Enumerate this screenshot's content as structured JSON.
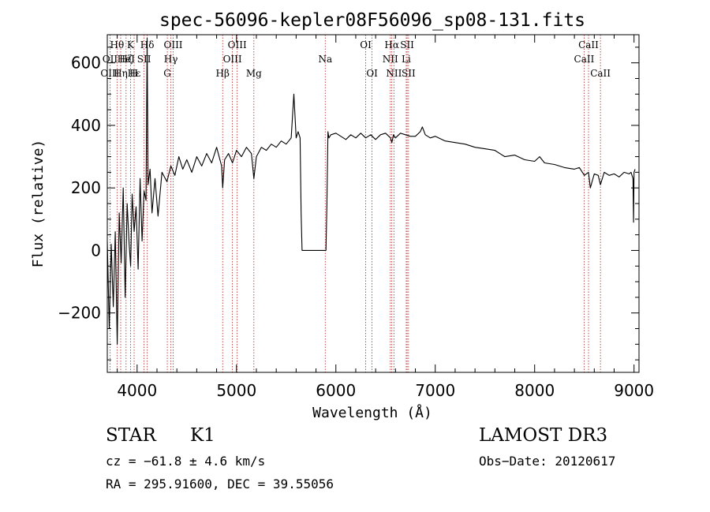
{
  "chart_data": {
    "type": "line",
    "title": "spec-56096-kepler08F56096_sp08-131.fits",
    "xlabel": "Wavelength (Å)",
    "ylabel": "Flux (relative)",
    "xlim": [
      3700,
      9050
    ],
    "ylim": [
      -390,
      690
    ],
    "xticks": [
      4000,
      5000,
      6000,
      7000,
      8000,
      9000
    ],
    "yticks": [
      -200,
      0,
      200,
      400,
      600
    ],
    "xtick_labels": [
      "4000",
      "5000",
      "6000",
      "7000",
      "8000",
      "9000"
    ],
    "ytick_labels": [
      "−200",
      "0",
      "200",
      "400",
      "600"
    ],
    "series": [
      {
        "name": "flux",
        "x": [
          3700,
          3720,
          3740,
          3760,
          3780,
          3800,
          3820,
          3840,
          3860,
          3880,
          3900,
          3920,
          3935,
          3950,
          3970,
          3990,
          4010,
          4030,
          4050,
          4070,
          4090,
          4101,
          4110,
          4130,
          4150,
          4180,
          4210,
          4250,
          4300,
          4340,
          4380,
          4420,
          4460,
          4500,
          4550,
          4600,
          4650,
          4700,
          4750,
          4800,
          4850,
          4861,
          4880,
          4920,
          4960,
          5000,
          5050,
          5100,
          5150,
          5175,
          5200,
          5250,
          5300,
          5350,
          5400,
          5450,
          5500,
          5550,
          5577,
          5600,
          5620,
          5640,
          5650,
          5660,
          5680,
          5800,
          5900,
          5910,
          5920,
          5930,
          5950,
          6000,
          6050,
          6100,
          6150,
          6200,
          6250,
          6300,
          6350,
          6400,
          6450,
          6500,
          6550,
          6563,
          6580,
          6600,
          6650,
          6700,
          6750,
          6800,
          6850,
          6870,
          6900,
          6950,
          7000,
          7100,
          7200,
          7300,
          7400,
          7500,
          7600,
          7700,
          7800,
          7900,
          8000,
          8050,
          8100,
          8200,
          8300,
          8400,
          8450,
          8500,
          8542,
          8560,
          8600,
          8640,
          8662,
          8700,
          8750,
          8800,
          8850,
          8900,
          8950,
          8970,
          8990,
          8995,
          9000,
          9010
        ],
        "y": [
          30,
          -250,
          20,
          -180,
          60,
          -300,
          120,
          -40,
          200,
          -150,
          150,
          20,
          -50,
          180,
          60,
          140,
          -60,
          230,
          30,
          190,
          160,
          680,
          210,
          260,
          120,
          230,
          110,
          250,
          220,
          270,
          240,
          300,
          260,
          290,
          250,
          300,
          270,
          310,
          280,
          330,
          270,
          200,
          290,
          310,
          280,
          320,
          300,
          330,
          310,
          230,
          300,
          330,
          320,
          340,
          330,
          350,
          340,
          360,
          500,
          360,
          380,
          360,
          120,
          0,
          0,
          0,
          0,
          150,
          380,
          360,
          370,
          375,
          365,
          355,
          370,
          360,
          375,
          360,
          370,
          355,
          370,
          375,
          360,
          345,
          370,
          360,
          375,
          370,
          365,
          365,
          380,
          395,
          370,
          360,
          365,
          350,
          345,
          340,
          330,
          325,
          320,
          300,
          305,
          290,
          285,
          300,
          280,
          275,
          265,
          260,
          265,
          240,
          250,
          200,
          245,
          240,
          210,
          250,
          240,
          245,
          235,
          250,
          245,
          250,
          230,
          90,
          250,
          260
        ]
      }
    ],
    "lines": [
      {
        "name": "Hθ",
        "wl": 3798,
        "row": 0
      },
      {
        "name": "OII",
        "wl": 3727,
        "row": 1
      },
      {
        "name": "OIII",
        "wl": 3727,
        "row": 2
      },
      {
        "name": "K",
        "wl": 3934,
        "row": 0
      },
      {
        "name": "Hζ",
        "wl": 3889,
        "row": 1
      },
      {
        "name": "Hε",
        "wl": 3970,
        "row": 2
      },
      {
        "name": "Hδ",
        "wl": 4102,
        "row": 0
      },
      {
        "name": "HeI",
        "wl": 3889,
        "row": 1
      },
      {
        "name": "Hη",
        "wl": 3835,
        "row": 2
      },
      {
        "name": "SII",
        "wl": 4070,
        "row": 1
      },
      {
        "name": "H",
        "wl": 3968,
        "row": 2
      },
      {
        "name": "OIII",
        "wl": 4363,
        "row": 0
      },
      {
        "name": "Hγ",
        "wl": 4340,
        "row": 1
      },
      {
        "name": "G",
        "wl": 4304,
        "row": 2
      },
      {
        "name": "Hβ",
        "wl": 4861,
        "row": 2
      },
      {
        "name": "OIII",
        "wl": 5007,
        "row": 0
      },
      {
        "name": "OIII",
        "wl": 4959,
        "row": 1
      },
      {
        "name": "Mg",
        "wl": 5175,
        "row": 2
      },
      {
        "name": "Na",
        "wl": 5893,
        "row": 1
      },
      {
        "name": "OI",
        "wl": 6300,
        "row": 0
      },
      {
        "name": "OI",
        "wl": 6364,
        "row": 2
      },
      {
        "name": "Hα",
        "wl": 6563,
        "row": 0
      },
      {
        "name": "NII",
        "wl": 6548,
        "row": 1
      },
      {
        "name": "NII",
        "wl": 6584,
        "row": 2
      },
      {
        "name": "SII",
        "wl": 6717,
        "row": 0
      },
      {
        "name": "Li",
        "wl": 6708,
        "row": 1
      },
      {
        "name": "SII",
        "wl": 6731,
        "row": 2
      },
      {
        "name": "CaII",
        "wl": 8542,
        "row": 0
      },
      {
        "name": "CaII",
        "wl": 8498,
        "row": 1
      },
      {
        "name": "CaII",
        "wl": 8662,
        "row": 2
      }
    ]
  },
  "info": {
    "class": "STAR",
    "subclass": "K1",
    "survey": "LAMOST DR3",
    "cz": "cz = −61.8 ± 4.6 km/s",
    "obs_date": "Obs−Date: 20120617",
    "radec": "RA = 295.91600, DEC =  39.55056"
  },
  "colors": {
    "line_marker": "#b22222",
    "spectrum": "#000000",
    "axis": "#000000"
  }
}
